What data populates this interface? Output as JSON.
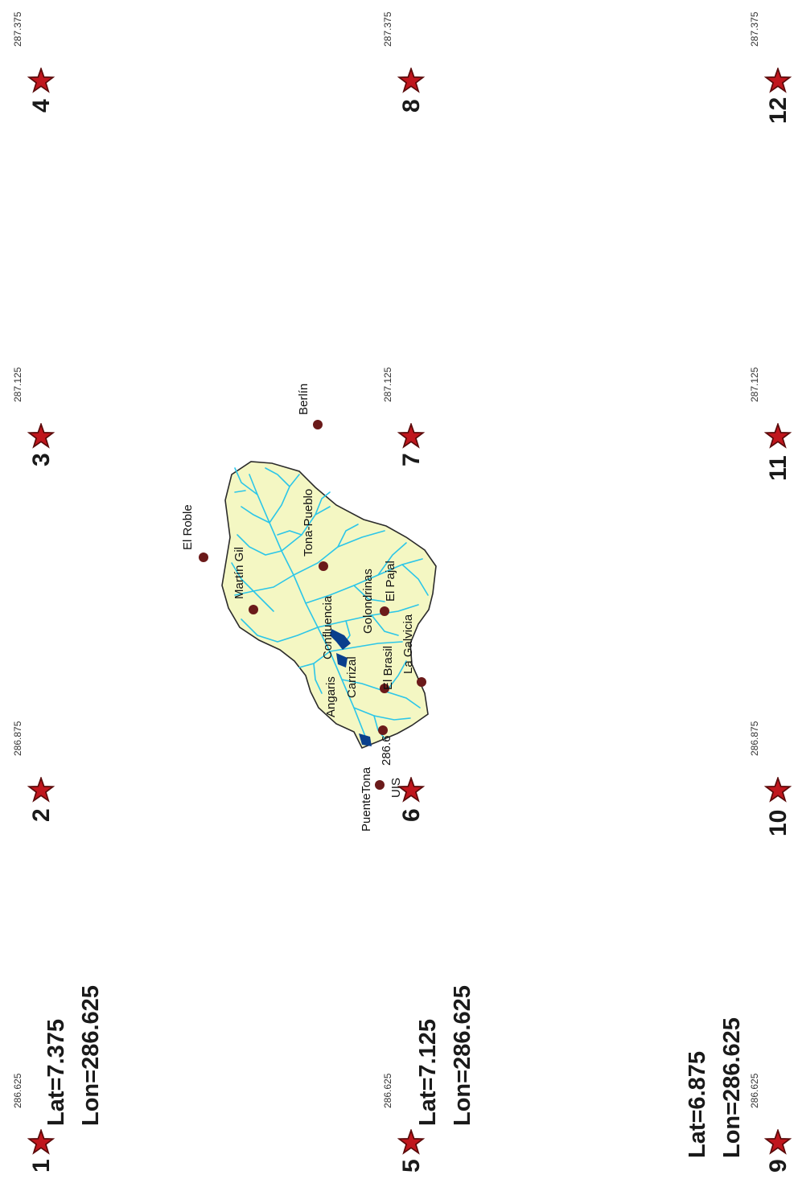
{
  "map": {
    "colors": {
      "star_fill": "#c0161d",
      "star_stroke": "#5a0a0a",
      "basin_fill": "#f4f7c3",
      "basin_border": "#2b2b2b",
      "river": "#2cc6e8",
      "reservoir": "#0a3f8c",
      "station_dot": "#6b1a1a"
    },
    "grid_points": [
      {
        "number": "1",
        "lon_label": "286.625"
      },
      {
        "number": "2",
        "lon_label": "286.875"
      },
      {
        "number": "3",
        "lon_label": "287.125"
      },
      {
        "number": "4",
        "lon_label": "287.375"
      },
      {
        "number": "5",
        "lon_label": "286.625"
      },
      {
        "number": "6",
        "lon_label": ""
      },
      {
        "number": "7",
        "lon_label": "287.125"
      },
      {
        "number": "8",
        "lon_label": "287.375"
      },
      {
        "number": "9",
        "lon_label": "286.625"
      },
      {
        "number": "10",
        "lon_label": "286.875"
      },
      {
        "number": "11",
        "lon_label": "287.125"
      },
      {
        "number": "12",
        "lon_label": "287.375"
      }
    ],
    "row_coords": [
      {
        "lat": "Lat=7.375",
        "lon": "Lon=286.625"
      },
      {
        "lat": "Lat=7.125",
        "lon": "Lon=286.625"
      },
      {
        "lat": "Lat=6.875",
        "lon": "Lon=286.625"
      }
    ],
    "stations": [
      {
        "name": "El Roble"
      },
      {
        "name": "Berlín"
      },
      {
        "name": "Martín Gil"
      },
      {
        "name": "Tona-Pueblo"
      },
      {
        "name": "Confluencia"
      },
      {
        "name": "Golondrinas"
      },
      {
        "name": "El Pajal"
      },
      {
        "name": "Angaris"
      },
      {
        "name": "Carrizal"
      },
      {
        "name": "El Brasil"
      },
      {
        "name": "La Galvicia"
      },
      {
        "name": "PuenteTona"
      },
      {
        "name": "286.6"
      },
      {
        "name": "UIS"
      }
    ]
  }
}
